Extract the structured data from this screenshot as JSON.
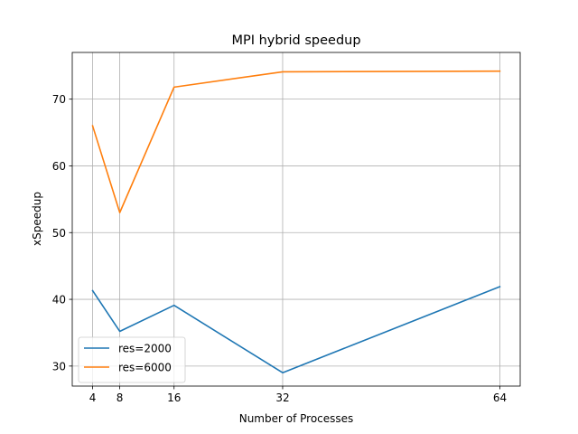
{
  "chart_data": {
    "type": "line",
    "title": "MPI hybrid speedup",
    "xlabel": "Number of Processes",
    "ylabel": "xSpeedup",
    "x": [
      4,
      8,
      16,
      32,
      64
    ],
    "xticks": [
      4,
      8,
      16,
      32,
      64
    ],
    "yticks": [
      30,
      40,
      50,
      60,
      70
    ],
    "xlim": [
      1.0,
      67.0
    ],
    "ylim": [
      27.0,
      77.0
    ],
    "grid": true,
    "legend_position": "lower-left",
    "series": [
      {
        "name": "res=2000",
        "color": "#1f77b4",
        "values": [
          41.3,
          35.2,
          39.1,
          29.0,
          41.9
        ]
      },
      {
        "name": "res=6000",
        "color": "#ff7f0e",
        "values": [
          66.0,
          53.0,
          71.8,
          74.1,
          74.2
        ]
      }
    ]
  }
}
